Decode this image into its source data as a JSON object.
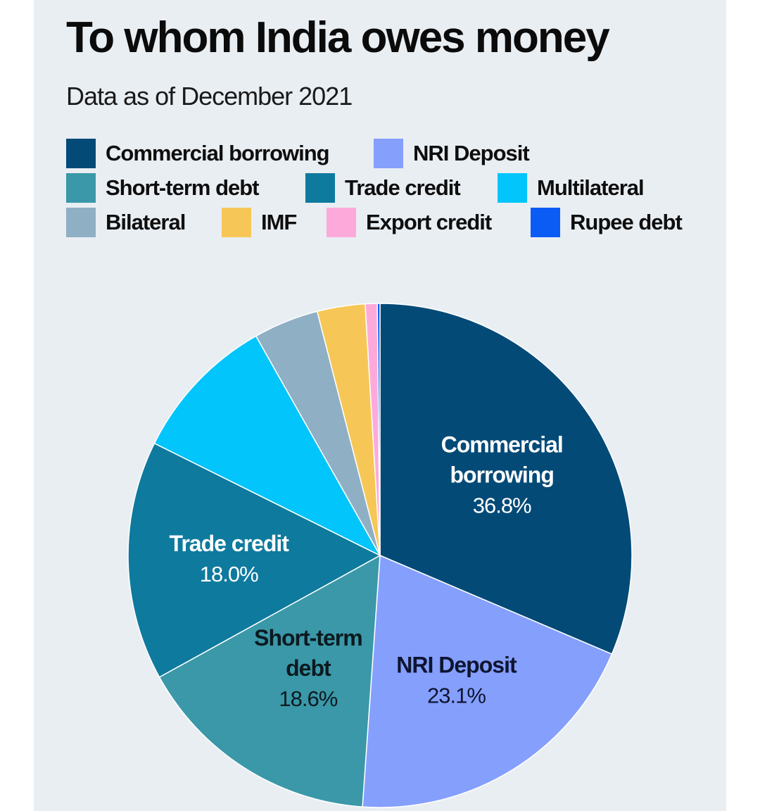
{
  "chart_data": {
    "type": "pie",
    "title": "To whom India owes money",
    "subtitle": "Data as of December 2021",
    "slices": [
      {
        "name": "Commercial borrowing",
        "display_name": "Commercial borrowing",
        "label_lines": [
          "Commercial",
          "borrowing"
        ],
        "value": 36.8,
        "value_label": "36.8%",
        "color": "#034a77",
        "text_color": "#ffffff"
      },
      {
        "name": "NRI Deposit",
        "display_name": "NRI Deposit",
        "label_lines": [
          "NRI Deposit"
        ],
        "value": 23.1,
        "value_label": "23.1%",
        "color": "#859ffd",
        "text_color": "#0e1530"
      },
      {
        "name": "Short-term debt",
        "display_name": "Short-term debt",
        "label_lines": [
          "Short-term",
          "debt"
        ],
        "value": 18.6,
        "value_label": "18.6%",
        "color": "#3a98a8",
        "text_color": "#0c1a20"
      },
      {
        "name": "Trade credit",
        "display_name": "Trade credit",
        "label_lines": [
          "Trade credit"
        ],
        "value": 18.0,
        "value_label": "18.0%",
        "color": "#0e7a9e",
        "text_color": "#ffffff"
      },
      {
        "name": "Multilateral",
        "display_name": "Multilateral",
        "label_lines": [],
        "value": 11.1,
        "value_label": "",
        "color": "#02c5fb",
        "text_color": "#ffffff"
      },
      {
        "name": "Bilateral",
        "display_name": "Bilateral",
        "label_lines": [],
        "value": 4.9,
        "value_label": "",
        "color": "#8fafc4",
        "text_color": "#ffffff"
      },
      {
        "name": "IMF",
        "display_name": "IMF",
        "label_lines": [],
        "value": 3.6,
        "value_label": "",
        "color": "#f6c756",
        "text_color": "#ffffff"
      },
      {
        "name": "Export credit",
        "display_name": "Export credit",
        "label_lines": [],
        "value": 0.9,
        "value_label": "",
        "color": "#fdaadb",
        "text_color": "#ffffff"
      },
      {
        "name": "Rupee debt",
        "display_name": "Rupee debt",
        "label_lines": [],
        "value": 0.2,
        "value_label": "",
        "color": "#0b5cf4",
        "text_color": "#ffffff"
      }
    ],
    "legend_order": [
      "Commercial borrowing",
      "NRI Deposit",
      "Short-term debt",
      "Trade credit",
      "Multilateral",
      "Bilateral",
      "IMF",
      "Export credit",
      "Rupee debt"
    ],
    "legend_placement": "top"
  }
}
